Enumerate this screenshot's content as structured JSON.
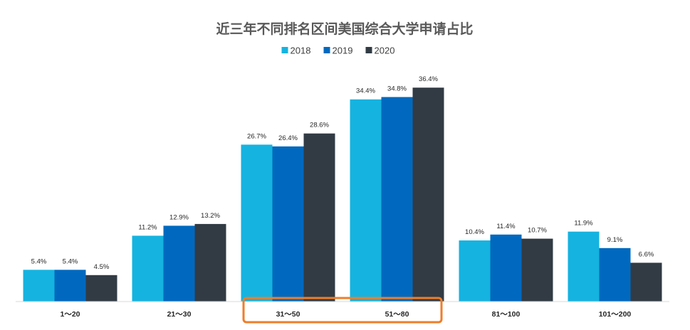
{
  "chart_data": {
    "type": "bar",
    "title": "近三年不同排名区间美国综合大学申请占比",
    "categories": [
      "1～20",
      "21～30",
      "31～50",
      "51～80",
      "81～100",
      "101～200"
    ],
    "series": [
      {
        "name": "2018",
        "values": [
          5.4,
          11.2,
          26.7,
          34.4,
          10.4,
          11.9
        ],
        "labels": [
          "5.4%",
          "11.2%",
          "26.7%",
          "34.4%",
          "10.4%",
          "11.9%"
        ]
      },
      {
        "name": "2019",
        "values": [
          5.4,
          12.9,
          26.4,
          34.8,
          11.4,
          9.1
        ],
        "labels": [
          "5.4%",
          "12.9%",
          "26.4%",
          "34.8%",
          "11.4%",
          "9.1%"
        ]
      },
      {
        "name": "2020",
        "values": [
          4.5,
          13.2,
          28.6,
          36.4,
          10.7,
          6.6
        ],
        "labels": [
          "4.5%",
          "13.2%",
          "28.6%",
          "36.4%",
          "10.7%",
          "6.6%"
        ]
      }
    ],
    "colors": [
      "#15b3e0",
      "#0069bf",
      "#323b44"
    ],
    "ylim": [
      0,
      38
    ],
    "grid": false,
    "legend": "top-center",
    "highlight": {
      "categories": [
        "31～50",
        "51～80"
      ],
      "color": "#ef7d28"
    }
  }
}
